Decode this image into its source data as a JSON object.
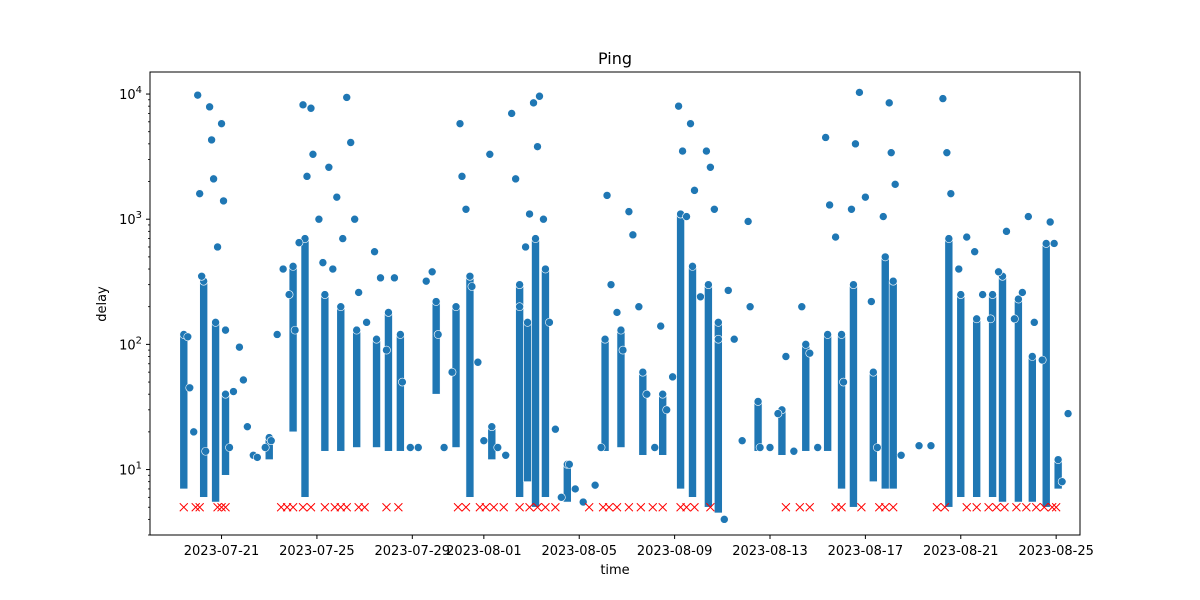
{
  "chart_data": {
    "type": "scatter",
    "title": "Ping",
    "xlabel": "time",
    "ylabel": "delay",
    "x_scale": "date",
    "y_scale": "log",
    "xlim": [
      "2023-07-18",
      "2023-08-26"
    ],
    "ylim": [
      3,
      15000
    ],
    "x_tick_labels": [
      "2023-07-21",
      "2023-07-25",
      "2023-07-29",
      "2023-08-01",
      "2023-08-05",
      "2023-08-09",
      "2023-08-13",
      "2023-08-17",
      "2023-08-21",
      "2023-08-25"
    ],
    "y_tick_labels": [
      "10^1",
      "10^2",
      "10^3",
      "10^4"
    ],
    "grid": false,
    "legend": "none",
    "colors": {
      "points": "#1f77b4",
      "point_edge": "#ffffff",
      "failures": "#ff0000"
    },
    "series": [
      {
        "marker": "circle",
        "points": [
          [
            "2023-07-19T14:00",
            115
          ],
          [
            "2023-07-19T16:00",
            45
          ],
          [
            "2023-07-19T20:00",
            20
          ],
          [
            "2023-07-20T00:00",
            9800
          ],
          [
            "2023-07-20T02:00",
            1600
          ],
          [
            "2023-07-20T04:00",
            350
          ],
          [
            "2023-07-20T08:00",
            14
          ],
          [
            "2023-07-20T12:00",
            7900
          ],
          [
            "2023-07-20T14:00",
            4300
          ],
          [
            "2023-07-20T16:00",
            2100
          ],
          [
            "2023-07-20T20:00",
            600
          ],
          [
            "2023-07-21T00:00",
            5800
          ],
          [
            "2023-07-21T02:00",
            1400
          ],
          [
            "2023-07-21T04:00",
            130
          ],
          [
            "2023-07-21T08:00",
            15
          ],
          [
            "2023-07-21T12:00",
            42
          ],
          [
            "2023-07-21T18:00",
            95
          ],
          [
            "2023-07-21T22:00",
            52
          ],
          [
            "2023-07-22T02:00",
            22
          ],
          [
            "2023-07-22T08:00",
            13
          ],
          [
            "2023-07-22T12:00",
            12.5
          ],
          [
            "2023-07-22T20:00",
            15
          ],
          [
            "2023-07-23T02:00",
            17
          ],
          [
            "2023-07-23T08:00",
            120
          ],
          [
            "2023-07-23T14:00",
            400
          ],
          [
            "2023-07-23T20:00",
            250
          ],
          [
            "2023-07-24T02:00",
            130
          ],
          [
            "2023-07-24T06:00",
            650
          ],
          [
            "2023-07-24T10:00",
            8200
          ],
          [
            "2023-07-24T14:00",
            2200
          ],
          [
            "2023-07-24T18:00",
            7700
          ],
          [
            "2023-07-24T20:00",
            3300
          ],
          [
            "2023-07-25T02:00",
            1000
          ],
          [
            "2023-07-25T06:00",
            450
          ],
          [
            "2023-07-25T12:00",
            2600
          ],
          [
            "2023-07-25T16:00",
            400
          ],
          [
            "2023-07-25T20:00",
            1500
          ],
          [
            "2023-07-26T02:00",
            700
          ],
          [
            "2023-07-26T06:00",
            9400
          ],
          [
            "2023-07-26T10:00",
            4100
          ],
          [
            "2023-07-26T14:00",
            1000
          ],
          [
            "2023-07-26T18:00",
            260
          ],
          [
            "2023-07-27T02:00",
            150
          ],
          [
            "2023-07-27T10:00",
            550
          ],
          [
            "2023-07-27T16:00",
            340
          ],
          [
            "2023-07-27T22:00",
            90
          ],
          [
            "2023-07-28T06:00",
            340
          ],
          [
            "2023-07-28T14:00",
            50
          ],
          [
            "2023-07-28T22:00",
            15
          ],
          [
            "2023-07-29T06:00",
            15
          ],
          [
            "2023-07-29T14:00",
            320
          ],
          [
            "2023-07-29T20:00",
            380
          ],
          [
            "2023-07-30T02:00",
            120
          ],
          [
            "2023-07-30T08:00",
            15
          ],
          [
            "2023-07-30T16:00",
            60
          ],
          [
            "2023-07-31T00:00",
            5800
          ],
          [
            "2023-07-31T02:00",
            2200
          ],
          [
            "2023-07-31T06:00",
            1200
          ],
          [
            "2023-07-31T12:00",
            290
          ],
          [
            "2023-07-31T18:00",
            72
          ],
          [
            "2023-08-01T00:00",
            17
          ],
          [
            "2023-08-01T06:00",
            3300
          ],
          [
            "2023-08-01T14:00",
            15
          ],
          [
            "2023-08-01T22:00",
            13
          ],
          [
            "2023-08-02T04:00",
            7000
          ],
          [
            "2023-08-02T08:00",
            2100
          ],
          [
            "2023-08-02T12:00",
            200
          ],
          [
            "2023-08-02T18:00",
            600
          ],
          [
            "2023-08-02T22:00",
            1100
          ],
          [
            "2023-08-03T02:00",
            8500
          ],
          [
            "2023-08-03T06:00",
            3800
          ],
          [
            "2023-08-03T08:00",
            9600
          ],
          [
            "2023-08-03T12:00",
            1000
          ],
          [
            "2023-08-03T18:00",
            150
          ],
          [
            "2023-08-04T00:00",
            21
          ],
          [
            "2023-08-04T06:00",
            6
          ],
          [
            "2023-08-04T14:00",
            11
          ],
          [
            "2023-08-04T20:00",
            7
          ],
          [
            "2023-08-05T04:00",
            5.5
          ],
          [
            "2023-08-05T16:00",
            7.5
          ],
          [
            "2023-08-05T22:00",
            15
          ],
          [
            "2023-08-06T04:00",
            1550
          ],
          [
            "2023-08-06T08:00",
            300
          ],
          [
            "2023-08-06T14:00",
            180
          ],
          [
            "2023-08-06T20:00",
            90
          ],
          [
            "2023-08-07T02:00",
            1150
          ],
          [
            "2023-08-07T06:00",
            750
          ],
          [
            "2023-08-07T12:00",
            200
          ],
          [
            "2023-08-07T20:00",
            40
          ],
          [
            "2023-08-08T04:00",
            15
          ],
          [
            "2023-08-08T10:00",
            140
          ],
          [
            "2023-08-08T16:00",
            30
          ],
          [
            "2023-08-08T22:00",
            55
          ],
          [
            "2023-08-09T04:00",
            8000
          ],
          [
            "2023-08-09T08:00",
            3500
          ],
          [
            "2023-08-09T12:00",
            1050
          ],
          [
            "2023-08-09T16:00",
            5800
          ],
          [
            "2023-08-09T20:00",
            1700
          ],
          [
            "2023-08-10T02:00",
            240
          ],
          [
            "2023-08-10T08:00",
            3500
          ],
          [
            "2023-08-10T12:00",
            2600
          ],
          [
            "2023-08-10T16:00",
            1200
          ],
          [
            "2023-08-10T20:00",
            110
          ],
          [
            "2023-08-11T02:00",
            4
          ],
          [
            "2023-08-11T06:00",
            270
          ],
          [
            "2023-08-11T12:00",
            110
          ],
          [
            "2023-08-11T20:00",
            17
          ],
          [
            "2023-08-12T02:00",
            960
          ],
          [
            "2023-08-12T04:00",
            200
          ],
          [
            "2023-08-12T14:00",
            15
          ],
          [
            "2023-08-13T00:00",
            15
          ],
          [
            "2023-08-13T08:00",
            28
          ],
          [
            "2023-08-13T16:00",
            80
          ],
          [
            "2023-08-14T00:00",
            14
          ],
          [
            "2023-08-14T08:00",
            200
          ],
          [
            "2023-08-14T16:00",
            85
          ],
          [
            "2023-08-15T00:00",
            15
          ],
          [
            "2023-08-15T08:00",
            4500
          ],
          [
            "2023-08-15T12:00",
            1300
          ],
          [
            "2023-08-15T18:00",
            720
          ],
          [
            "2023-08-16T02:00",
            50
          ],
          [
            "2023-08-16T10:00",
            1200
          ],
          [
            "2023-08-16T14:00",
            4000
          ],
          [
            "2023-08-16T18:00",
            10300
          ],
          [
            "2023-08-17T00:00",
            1500
          ],
          [
            "2023-08-17T06:00",
            220
          ],
          [
            "2023-08-17T12:00",
            15
          ],
          [
            "2023-08-17T18:00",
            1050
          ],
          [
            "2023-08-18T00:00",
            8500
          ],
          [
            "2023-08-18T02:00",
            3400
          ],
          [
            "2023-08-18T06:00",
            1900
          ],
          [
            "2023-08-18T12:00",
            13
          ],
          [
            "2023-08-19T06:00",
            15.5
          ],
          [
            "2023-08-19T18:00",
            15.5
          ],
          [
            "2023-08-20T06:00",
            9200
          ],
          [
            "2023-08-20T10:00",
            3400
          ],
          [
            "2023-08-20T14:00",
            1600
          ],
          [
            "2023-08-20T22:00",
            400
          ],
          [
            "2023-08-21T06:00",
            720
          ],
          [
            "2023-08-21T14:00",
            550
          ],
          [
            "2023-08-21T22:00",
            250
          ],
          [
            "2023-08-22T06:00",
            160
          ],
          [
            "2023-08-22T14:00",
            380
          ],
          [
            "2023-08-22T22:00",
            800
          ],
          [
            "2023-08-23T06:00",
            160
          ],
          [
            "2023-08-23T14:00",
            260
          ],
          [
            "2023-08-23T20:00",
            1050
          ],
          [
            "2023-08-24T02:00",
            150
          ],
          [
            "2023-08-24T10:00",
            75
          ],
          [
            "2023-08-24T18:00",
            950
          ],
          [
            "2023-08-24T22:00",
            640
          ],
          [
            "2023-08-25T06:00",
            8
          ],
          [
            "2023-08-25T12:00",
            28
          ]
        ],
        "bands": [
          [
            "2023-07-19T10:00",
            7,
            120
          ],
          [
            "2023-07-20T06:00",
            6,
            320
          ],
          [
            "2023-07-20T18:00",
            5.5,
            150
          ],
          [
            "2023-07-21T04:00",
            9,
            40
          ],
          [
            "2023-07-23T00:00",
            12,
            18
          ],
          [
            "2023-07-24T00:00",
            20,
            420
          ],
          [
            "2023-07-24T12:00",
            6,
            700
          ],
          [
            "2023-07-25T08:00",
            14,
            250
          ],
          [
            "2023-07-26T00:00",
            14,
            200
          ],
          [
            "2023-07-26T16:00",
            15,
            130
          ],
          [
            "2023-07-27T12:00",
            15,
            110
          ],
          [
            "2023-07-28T00:00",
            14,
            180
          ],
          [
            "2023-07-28T12:00",
            14,
            120
          ],
          [
            "2023-07-30T00:00",
            40,
            220
          ],
          [
            "2023-07-30T20:00",
            15,
            200
          ],
          [
            "2023-07-31T10:00",
            6,
            350
          ],
          [
            "2023-08-01T08:00",
            12,
            22
          ],
          [
            "2023-08-02T12:00",
            6,
            300
          ],
          [
            "2023-08-02T20:00",
            8,
            150
          ],
          [
            "2023-08-03T04:00",
            5,
            700
          ],
          [
            "2023-08-03T14:00",
            6,
            400
          ],
          [
            "2023-08-04T12:00",
            5.5,
            11
          ],
          [
            "2023-08-06T02:00",
            14,
            110
          ],
          [
            "2023-08-06T18:00",
            15,
            130
          ],
          [
            "2023-08-07T16:00",
            13,
            60
          ],
          [
            "2023-08-08T12:00",
            13,
            40
          ],
          [
            "2023-08-09T06:00",
            7,
            1100
          ],
          [
            "2023-08-09T18:00",
            6,
            420
          ],
          [
            "2023-08-10T10:00",
            5,
            300
          ],
          [
            "2023-08-10T20:00",
            4.5,
            150
          ],
          [
            "2023-08-12T12:00",
            14,
            35
          ],
          [
            "2023-08-13T12:00",
            13,
            30
          ],
          [
            "2023-08-14T12:00",
            14,
            100
          ],
          [
            "2023-08-15T10:00",
            14,
            120
          ],
          [
            "2023-08-16T00:00",
            7,
            120
          ],
          [
            "2023-08-16T12:00",
            5,
            300
          ],
          [
            "2023-08-17T08:00",
            8,
            60
          ],
          [
            "2023-08-17T20:00",
            7,
            500
          ],
          [
            "2023-08-18T04:00",
            7,
            320
          ],
          [
            "2023-08-20T12:00",
            5,
            700
          ],
          [
            "2023-08-21T00:00",
            6,
            250
          ],
          [
            "2023-08-21T16:00",
            6,
            160
          ],
          [
            "2023-08-22T08:00",
            6,
            250
          ],
          [
            "2023-08-22T18:00",
            5.5,
            350
          ],
          [
            "2023-08-23T10:00",
            5.5,
            230
          ],
          [
            "2023-08-24T00:00",
            5.5,
            80
          ],
          [
            "2023-08-24T14:00",
            5,
            640
          ],
          [
            "2023-08-25T02:00",
            7,
            12
          ]
        ]
      },
      {
        "marker": "x",
        "y": 5,
        "x": [
          "2023-07-19T10:00",
          "2023-07-19T22:00",
          "2023-07-20T02:00",
          "2023-07-20T20:00",
          "2023-07-21T00:00",
          "2023-07-21T04:00",
          "2023-07-23T12:00",
          "2023-07-23T18:00",
          "2023-07-24T00:00",
          "2023-07-24T10:00",
          "2023-07-24T18:00",
          "2023-07-25T08:00",
          "2023-07-25T18:00",
          "2023-07-26T00:00",
          "2023-07-26T06:00",
          "2023-07-26T18:00",
          "2023-07-27T00:00",
          "2023-07-27T22:00",
          "2023-07-28T10:00",
          "2023-07-30T22:00",
          "2023-07-31T06:00",
          "2023-07-31T20:00",
          "2023-08-01T02:00",
          "2023-08-01T10:00",
          "2023-08-01T20:00",
          "2023-08-02T12:00",
          "2023-08-02T22:00",
          "2023-08-03T06:00",
          "2023-08-03T14:00",
          "2023-08-04T00:00",
          "2023-08-05T10:00",
          "2023-08-06T00:00",
          "2023-08-06T06:00",
          "2023-08-06T14:00",
          "2023-08-07T02:00",
          "2023-08-07T14:00",
          "2023-08-08T02:00",
          "2023-08-08T12:00",
          "2023-08-09T06:00",
          "2023-08-09T12:00",
          "2023-08-09T20:00",
          "2023-08-10T12:00",
          "2023-08-13T16:00",
          "2023-08-14T06:00",
          "2023-08-14T16:00",
          "2023-08-15T18:00",
          "2023-08-16T00:00",
          "2023-08-16T20:00",
          "2023-08-17T14:00",
          "2023-08-17T20:00",
          "2023-08-18T04:00",
          "2023-08-20T00:00",
          "2023-08-20T08:00",
          "2023-08-21T06:00",
          "2023-08-21T16:00",
          "2023-08-22T04:00",
          "2023-08-22T12:00",
          "2023-08-22T20:00",
          "2023-08-23T08:00",
          "2023-08-23T18:00",
          "2023-08-24T04:00",
          "2023-08-24T12:00",
          "2023-08-24T20:00",
          "2023-08-25T00:00"
        ]
      }
    ]
  }
}
